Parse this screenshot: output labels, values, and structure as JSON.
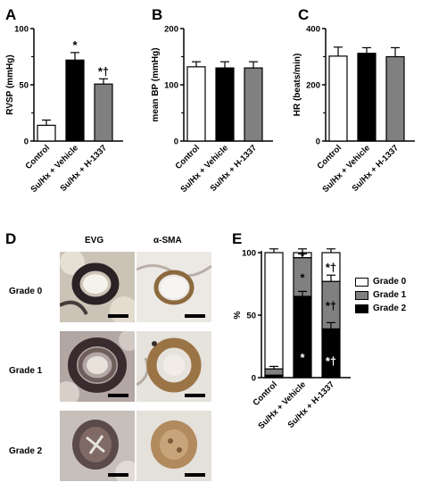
{
  "panels": {
    "a": "A",
    "b": "B",
    "c": "C",
    "d": "D",
    "e": "E"
  },
  "colors": {
    "control": "#ffffff",
    "vehicle": "#000000",
    "h1337": "#808080"
  },
  "chart_data": [
    {
      "id": "A",
      "type": "bar",
      "ylabel": "RVSP (mmHg)",
      "ylim": [
        0,
        150
      ],
      "yticks": [
        "0",
        "50",
        "100"
      ],
      "categories": [
        "Control",
        "Su/Hx + Vehicle",
        "Su/Hx + H-1337"
      ],
      "values": [
        21,
        108,
        76
      ],
      "errors": [
        7,
        10,
        7
      ],
      "annotations": [
        "",
        "*",
        "*†"
      ]
    },
    {
      "id": "B",
      "type": "bar",
      "ylabel": "mean BP (mmHg)",
      "ylim": [
        0,
        200
      ],
      "yticks": [
        "0",
        "100",
        "200"
      ],
      "categories": [
        "Control",
        "Su/Hx + Vehicle",
        "Su/Hx + H-1337"
      ],
      "values": [
        132,
        130,
        130
      ],
      "errors": [
        9,
        11,
        11
      ],
      "annotations": [
        "",
        "",
        ""
      ]
    },
    {
      "id": "C",
      "type": "bar",
      "ylabel": "HR (beats/min)",
      "ylim": [
        0,
        400
      ],
      "yticks": [
        "0",
        "200",
        "400"
      ],
      "categories": [
        "Control",
        "Su/Hx + Vehicle",
        "Su/Hx + H-1337"
      ],
      "values": [
        302,
        312,
        300
      ],
      "errors": [
        32,
        20,
        32
      ],
      "annotations": [
        "",
        "",
        ""
      ]
    },
    {
      "id": "E",
      "type": "bar",
      "stacked": true,
      "ylabel": "%",
      "ylim": [
        0,
        100
      ],
      "yticks": [
        "0",
        "50",
        "100"
      ],
      "categories": [
        "Control",
        "Su/Hx + Vehicle",
        "Su/Hx + H-1337"
      ],
      "series": [
        {
          "name": "Grade 0",
          "values": [
            93,
            4,
            23
          ],
          "errors": [
            3,
            3,
            3
          ],
          "annotations": [
            "",
            "*",
            "*†"
          ]
        },
        {
          "name": "Grade 1",
          "values": [
            5,
            31,
            38
          ],
          "errors": [
            2,
            3,
            5
          ],
          "annotations": [
            "",
            "*",
            "*†"
          ]
        },
        {
          "name": "Grade 2",
          "values": [
            2,
            65,
            39
          ],
          "errors": [
            0,
            4,
            5
          ],
          "annotations": [
            "",
            "*",
            "*†"
          ]
        }
      ],
      "legend": "right"
    }
  ],
  "histology": {
    "columns": [
      "EVG",
      "α-SMA"
    ],
    "rows": [
      "Grade 0",
      "Grade 1",
      "Grade 2"
    ]
  }
}
